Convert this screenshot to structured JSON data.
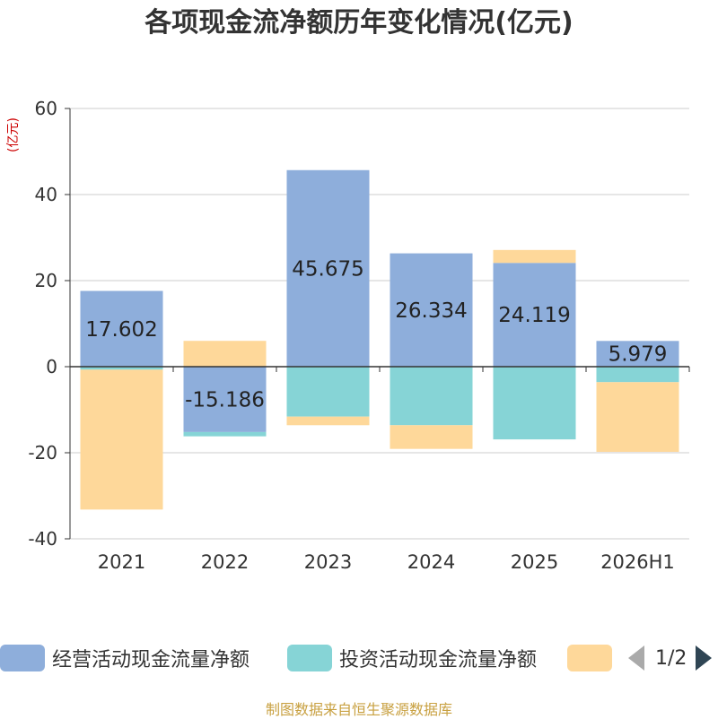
{
  "title": "各项现金流净额历年变化情况(亿元)",
  "unit_label": "(亿元)",
  "footer": "制图数据来自恒生聚源数据库",
  "legend": {
    "items": [
      {
        "label": "经营活动现金流量净额",
        "color": "#8eaedb"
      },
      {
        "label": "投资活动现金流量净额",
        "color": "#86d4d6"
      },
      {
        "label": "",
        "color": "#fed89a"
      }
    ],
    "page_text": "1/2"
  },
  "colors": {
    "axis": "#333333",
    "grid": "#cccccc",
    "tick_text": "#333333",
    "label_text": "#222222"
  },
  "chart_data": {
    "type": "bar",
    "stacked": true,
    "title": "各项现金流净额历年变化情况(亿元)",
    "ylabel": "(亿元)",
    "ylim": [
      -40,
      60
    ],
    "yticks": [
      -40,
      -20,
      0,
      20,
      40,
      60
    ],
    "grid": true,
    "legend_position": "bottom",
    "categories": [
      "2021",
      "2022",
      "2023",
      "2024",
      "2025",
      "2026H1"
    ],
    "series": [
      {
        "name": "经营活动现金流量净额",
        "color": "#8eaedb",
        "values": [
          17.602,
          -15.186,
          45.675,
          26.334,
          24.119,
          5.979
        ],
        "labels": [
          "17.602",
          "-15.186",
          "45.675",
          "26.334",
          "24.119",
          "5.979"
        ]
      },
      {
        "name": "投资活动现金流量净额",
        "color": "#86d4d6",
        "values": [
          -0.7,
          -1.0,
          -11.6,
          -13.6,
          -16.9,
          -3.6
        ]
      },
      {
        "color": "#fed89a",
        "values": [
          -32.5,
          6.0,
          -2.0,
          -5.5,
          3.0,
          -16.2
        ]
      }
    ]
  }
}
